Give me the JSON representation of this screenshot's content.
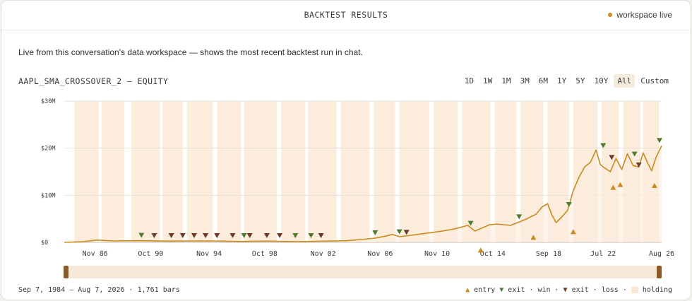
{
  "header": {
    "title": "BACKTEST RESULTS",
    "status": "workspace live"
  },
  "description": "Live from this conversation's data workspace — shows the most recent backtest run in chat.",
  "ranges": [
    "1D",
    "1W",
    "1M",
    "3M",
    "6M",
    "1Y",
    "5Y",
    "10Y",
    "All",
    "Custom"
  ],
  "active_range": "All",
  "footer": {
    "summary": "Sep 7, 1984 – Aug 7, 2026 · 1,761 bars",
    "legend": {
      "entry": "entry",
      "exit_win": "exit · win",
      "exit_loss": "exit · loss",
      "holding": "holding",
      "dot": "·"
    }
  },
  "colors": {
    "line": "#c98a1e",
    "entry": "#c98a1e",
    "exit_win": "#4f7a2f",
    "exit_loss": "#6b3b2a",
    "holding": "#fbe9d6"
  },
  "chart_data": {
    "type": "line",
    "title": "AAPL_SMA_CROSSOVER_2 — EQUITY",
    "xlim": [
      1984.686,
      2026.6
    ],
    "ylim": [
      0,
      30
    ],
    "y_ticks": [
      {
        "v": 0,
        "label": "$0"
      },
      {
        "v": 10,
        "label": "$10M"
      },
      {
        "v": 20,
        "label": "$20M"
      },
      {
        "v": 30,
        "label": "$30M"
      }
    ],
    "x_ticks": [
      {
        "v": 1986.85,
        "label": "Nov 86"
      },
      {
        "v": 1990.75,
        "label": "Oct 90"
      },
      {
        "v": 1994.85,
        "label": "Nov 94"
      },
      {
        "v": 1998.75,
        "label": "Oct 98"
      },
      {
        "v": 2002.85,
        "label": "Nov 02"
      },
      {
        "v": 2006.85,
        "label": "Nov 06"
      },
      {
        "v": 2010.85,
        "label": "Nov 10"
      },
      {
        "v": 2014.75,
        "label": "Oct 14"
      },
      {
        "v": 2018.67,
        "label": "Sep 18"
      },
      {
        "v": 2022.5,
        "label": "Jul 22"
      },
      {
        "v": 2026.6,
        "label": "Aug 26"
      }
    ],
    "grid": true,
    "series": [
      {
        "x": [
          1984.69,
          1986.0,
          1987.0,
          1987.5,
          1988.0,
          1990.0,
          1992.0,
          1995.0,
          1997.0,
          1999.0,
          2001.0,
          2003.0,
          2004.5,
          2005.5,
          2006.5,
          2007.2,
          2007.7,
          2008.2,
          2009.0,
          2010.0,
          2011.0,
          2012.0,
          2013.0,
          2013.5,
          2014.5,
          2015.0,
          2016.0,
          2017.0,
          2017.8,
          2018.2,
          2018.6,
          2018.9,
          2019.2,
          2019.6,
          2020.0,
          2020.4,
          2020.8,
          2021.2,
          2021.6,
          2022.0,
          2022.3,
          2022.6,
          2023.0,
          2023.4,
          2023.8,
          2024.2,
          2024.6,
          2025.0,
          2025.3,
          2025.6,
          2025.9,
          2026.2,
          2026.6
        ],
        "y": [
          0.0,
          0.15,
          0.5,
          0.4,
          0.3,
          0.35,
          0.25,
          0.3,
          0.2,
          0.25,
          0.15,
          0.25,
          0.35,
          0.6,
          0.9,
          1.3,
          1.7,
          1.2,
          1.5,
          1.9,
          2.3,
          2.8,
          3.6,
          2.4,
          3.7,
          3.9,
          3.6,
          4.8,
          6.0,
          7.5,
          8.2,
          5.8,
          4.2,
          5.4,
          6.8,
          11.0,
          13.8,
          16.0,
          17.0,
          19.6,
          16.5,
          15.8,
          15.0,
          17.8,
          15.5,
          18.8,
          16.3,
          16.0,
          19.0,
          17.0,
          15.2,
          18.0,
          20.5
        ]
      }
    ],
    "holding_periods": [
      [
        1985.4,
        1987.1
      ],
      [
        1987.3,
        1988.9
      ],
      [
        1989.4,
        1991.4
      ],
      [
        1991.6,
        1993.0
      ],
      [
        1993.3,
        1995.1
      ],
      [
        1995.4,
        1997.1
      ],
      [
        1997.3,
        1999.6
      ],
      [
        1999.9,
        2001.6
      ],
      [
        2001.8,
        2003.8
      ],
      [
        2004.1,
        2006.1
      ],
      [
        2006.4,
        2007.9
      ],
      [
        2008.2,
        2010.3
      ],
      [
        2010.6,
        2012.3
      ],
      [
        2012.6,
        2014.6
      ],
      [
        2014.9,
        2016.4
      ],
      [
        2016.7,
        2018.3
      ],
      [
        2018.6,
        2020.1
      ],
      [
        2020.4,
        2022.1
      ],
      [
        2022.4,
        2023.6
      ],
      [
        2023.9,
        2025.1
      ],
      [
        2025.3,
        2026.4
      ]
    ],
    "markers": [
      {
        "type": "exit_win",
        "x": 1990.1,
        "y": 0.35
      },
      {
        "type": "exit_loss",
        "x": 1991.0,
        "y": 0.3
      },
      {
        "type": "exit_loss",
        "x": 1992.2,
        "y": 0.3
      },
      {
        "type": "exit_loss",
        "x": 1993.0,
        "y": 0.3
      },
      {
        "type": "exit_loss",
        "x": 1993.8,
        "y": 0.3
      },
      {
        "type": "exit_loss",
        "x": 1994.6,
        "y": 0.3
      },
      {
        "type": "exit_loss",
        "x": 1995.4,
        "y": 0.3
      },
      {
        "type": "exit_loss",
        "x": 1996.5,
        "y": 0.3
      },
      {
        "type": "exit_win",
        "x": 1997.3,
        "y": 0.3
      },
      {
        "type": "exit_loss",
        "x": 1997.7,
        "y": 0.3
      },
      {
        "type": "exit_loss",
        "x": 1998.9,
        "y": 0.3
      },
      {
        "type": "exit_loss",
        "x": 1999.8,
        "y": 0.3
      },
      {
        "type": "exit_win",
        "x": 2000.9,
        "y": 0.3
      },
      {
        "type": "exit_win",
        "x": 2002.0,
        "y": 0.3
      },
      {
        "type": "exit_loss",
        "x": 2002.7,
        "y": 0.3
      },
      {
        "type": "exit_win",
        "x": 2006.5,
        "y": 0.9
      },
      {
        "type": "exit_win",
        "x": 2008.2,
        "y": 1.1
      },
      {
        "type": "exit_loss",
        "x": 2008.7,
        "y": 1.0
      },
      {
        "type": "exit_win",
        "x": 2013.2,
        "y": 2.9
      },
      {
        "type": "entry",
        "x": 2013.9,
        "y": -0.5
      },
      {
        "type": "exit_win",
        "x": 2016.6,
        "y": 4.3
      },
      {
        "type": "entry",
        "x": 2017.6,
        "y": 2.2
      },
      {
        "type": "exit_win",
        "x": 2020.1,
        "y": 6.9
      },
      {
        "type": "entry",
        "x": 2020.4,
        "y": 3.4
      },
      {
        "type": "exit_win",
        "x": 2022.5,
        "y": 19.4
      },
      {
        "type": "exit_loss",
        "x": 2023.1,
        "y": 16.9
      },
      {
        "type": "entry",
        "x": 2023.2,
        "y": 12.8
      },
      {
        "type": "entry",
        "x": 2023.7,
        "y": 13.4
      },
      {
        "type": "exit_win",
        "x": 2024.7,
        "y": 17.6
      },
      {
        "type": "exit_loss",
        "x": 2025.0,
        "y": 15.3
      },
      {
        "type": "entry",
        "x": 2026.1,
        "y": 13.2
      },
      {
        "type": "exit_win",
        "x": 2026.45,
        "y": 20.5
      }
    ]
  }
}
